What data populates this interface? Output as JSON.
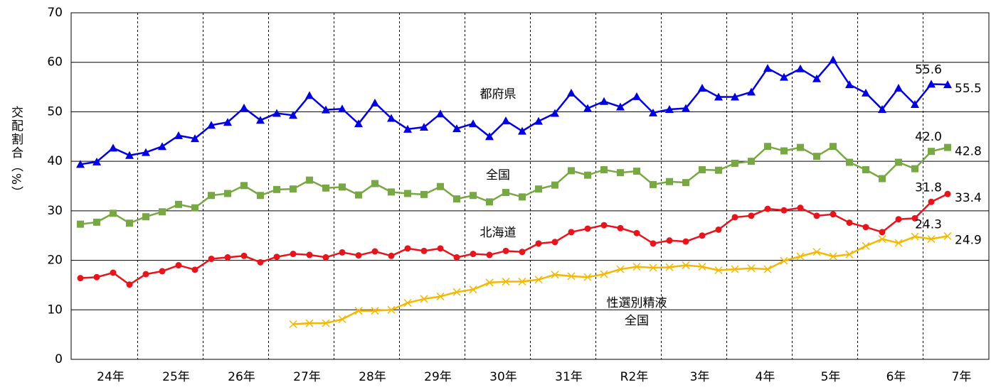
{
  "chart_data": {
    "type": "line",
    "ylabel": "交配割合（%）",
    "ylim": [
      0,
      70
    ],
    "yticks": [
      0,
      10,
      20,
      30,
      40,
      50,
      60,
      70
    ],
    "grid": true,
    "categories": [
      null,
      "24年",
      null,
      null,
      null,
      "25年",
      null,
      null,
      null,
      "26年",
      null,
      null,
      null,
      "27年",
      null,
      null,
      null,
      "28年",
      null,
      null,
      null,
      "29年",
      null,
      null,
      null,
      "30年",
      null,
      null,
      null,
      "31年",
      null,
      null,
      null,
      "R2年",
      null,
      null,
      null,
      "3年",
      null,
      null,
      null,
      "4年",
      null,
      null,
      null,
      "5年",
      null,
      null,
      null,
      "6年",
      null,
      null,
      null,
      "7年"
    ],
    "series": [
      {
        "label_lines": [
          "都府県"
        ],
        "color": "#0000e0",
        "marker": "triangle",
        "values": [
          39.4,
          39.9,
          42.7,
          41.2,
          41.8,
          43,
          45.2,
          44.6,
          47.3,
          47.9,
          50.8,
          48.3,
          49.7,
          49.3,
          53.3,
          50.4,
          50.6,
          47.6,
          51.8,
          48.7,
          46.5,
          46.9,
          49.6,
          46.6,
          47.6,
          45,
          48.2,
          46.1,
          48.1,
          49.7,
          53.8,
          50.7,
          52.1,
          51,
          53.1,
          49.8,
          50.5,
          50.7,
          54.8,
          53,
          53,
          54,
          58.8,
          57,
          58.7,
          56.7,
          60.5,
          55.5,
          53.8,
          50.5,
          54.8,
          51.5,
          55.6,
          55.5
        ],
        "value_labels": [
          null,
          null,
          null,
          null,
          null,
          null,
          null,
          null,
          null,
          null,
          null,
          null,
          null,
          null,
          null,
          null,
          null,
          null,
          null,
          null,
          null,
          null,
          null,
          null,
          null,
          null,
          null,
          null,
          null,
          null,
          null,
          null,
          null,
          null,
          null,
          null,
          null,
          null,
          null,
          null,
          null,
          null,
          null,
          null,
          null,
          null,
          null,
          null,
          null,
          null,
          null,
          null,
          "55.6",
          "55.5"
        ]
      },
      {
        "label_lines": [
          "全国"
        ],
        "color": "#77a843",
        "marker": "square",
        "values": [
          27.3,
          27.7,
          29.5,
          27.5,
          28.8,
          29.8,
          31.3,
          30.6,
          33.1,
          33.5,
          35.1,
          33.1,
          34.3,
          34.4,
          36.2,
          34.6,
          34.8,
          33.2,
          35.5,
          33.8,
          33.5,
          33.3,
          34.9,
          32.4,
          33.1,
          31.8,
          33.7,
          32.8,
          34.4,
          35.2,
          38.1,
          37.2,
          38.3,
          37.7,
          38,
          35.3,
          35.9,
          35.7,
          38.3,
          38.2,
          39.6,
          40,
          43,
          42.1,
          42.8,
          41,
          43,
          39.8,
          38.3,
          36.5,
          39.8,
          38.5,
          42.0,
          42.8
        ],
        "value_labels": [
          null,
          null,
          null,
          null,
          null,
          null,
          null,
          null,
          null,
          null,
          null,
          null,
          null,
          null,
          null,
          null,
          null,
          null,
          null,
          null,
          null,
          null,
          null,
          null,
          null,
          null,
          null,
          null,
          null,
          null,
          null,
          null,
          null,
          null,
          null,
          null,
          null,
          null,
          null,
          null,
          null,
          null,
          null,
          null,
          null,
          null,
          null,
          null,
          null,
          null,
          null,
          null,
          "42.0",
          "42.8"
        ]
      },
      {
        "label_lines": [
          "北海道"
        ],
        "color": "#e8141b",
        "marker": "circle",
        "values": [
          16.4,
          16.6,
          17.5,
          15.1,
          17.2,
          17.8,
          19,
          18.1,
          20.3,
          20.6,
          20.9,
          19.6,
          20.7,
          21.3,
          21.1,
          20.6,
          21.6,
          21,
          21.8,
          20.9,
          22.4,
          21.9,
          22.4,
          20.6,
          21.3,
          21.1,
          21.9,
          21.7,
          23.4,
          23.7,
          25.7,
          26.4,
          27.1,
          26.5,
          25.5,
          23.4,
          24,
          23.8,
          25,
          26.2,
          28.7,
          29,
          30.4,
          30.1,
          30.6,
          29,
          29.3,
          27.6,
          26.7,
          25.7,
          28.3,
          28.5,
          31.8,
          33.4
        ],
        "value_labels": [
          null,
          null,
          null,
          null,
          null,
          null,
          null,
          null,
          null,
          null,
          null,
          null,
          null,
          null,
          null,
          null,
          null,
          null,
          null,
          null,
          null,
          null,
          null,
          null,
          null,
          null,
          null,
          null,
          null,
          null,
          null,
          null,
          null,
          null,
          null,
          null,
          null,
          null,
          null,
          null,
          null,
          null,
          null,
          null,
          null,
          null,
          null,
          null,
          null,
          null,
          null,
          null,
          "31.8",
          "33.4"
        ]
      },
      {
        "label_lines": [
          "性選別精液",
          "全国"
        ],
        "color": "#f5b800",
        "marker": "x",
        "values": [
          null,
          null,
          null,
          null,
          null,
          null,
          null,
          null,
          null,
          null,
          null,
          null,
          null,
          7.1,
          7.3,
          7.3,
          8.1,
          9.8,
          9.8,
          10,
          11.4,
          12.2,
          12.7,
          13.6,
          14.1,
          15.5,
          15.7,
          15.7,
          16.1,
          17.1,
          16.8,
          16.6,
          17.2,
          18.2,
          18.7,
          18.5,
          18.6,
          19,
          18.7,
          18,
          18.2,
          18.4,
          18.2,
          19.9,
          20.8,
          21.7,
          20.8,
          21.2,
          22.9,
          24.3,
          23.5,
          24.8,
          24.3,
          24.9
        ],
        "value_labels": [
          null,
          null,
          null,
          null,
          null,
          null,
          null,
          null,
          null,
          null,
          null,
          null,
          null,
          null,
          null,
          null,
          null,
          null,
          null,
          null,
          null,
          null,
          null,
          null,
          null,
          null,
          null,
          null,
          null,
          null,
          null,
          null,
          null,
          null,
          null,
          null,
          null,
          null,
          null,
          null,
          null,
          null,
          null,
          null,
          null,
          null,
          null,
          null,
          null,
          null,
          null,
          null,
          "24.3",
          "24.9"
        ]
      }
    ]
  }
}
